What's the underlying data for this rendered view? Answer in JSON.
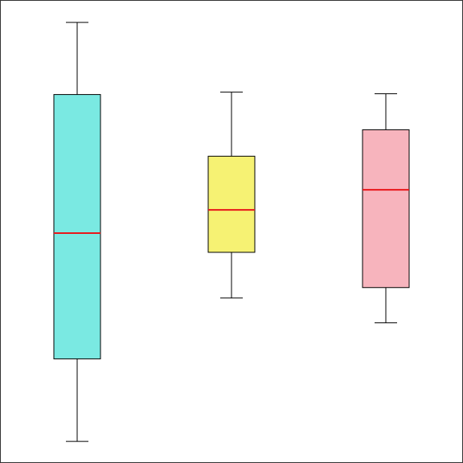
{
  "chart_data": {
    "type": "box",
    "title": "",
    "xlabel": "",
    "ylabel": "",
    "ylim": [
      0,
      576
    ],
    "grid": false,
    "legend": "none",
    "boxes": [
      {
        "whisker_low": 26,
        "q1": 129,
        "median": 286,
        "q3": 459,
        "whisker_high": 549,
        "fill": "#7ae9e2"
      },
      {
        "whisker_low": 205,
        "q1": 262,
        "median": 315,
        "q3": 382,
        "whisker_high": 462,
        "fill": "#f6f273"
      },
      {
        "whisker_low": 174,
        "q1": 218,
        "median": 340,
        "q3": 415,
        "whisker_high": 460,
        "fill": "#f7b4bd"
      }
    ],
    "colors": {
      "median": "#e8161a",
      "outline": "#000000",
      "background": "#ffffff"
    }
  }
}
